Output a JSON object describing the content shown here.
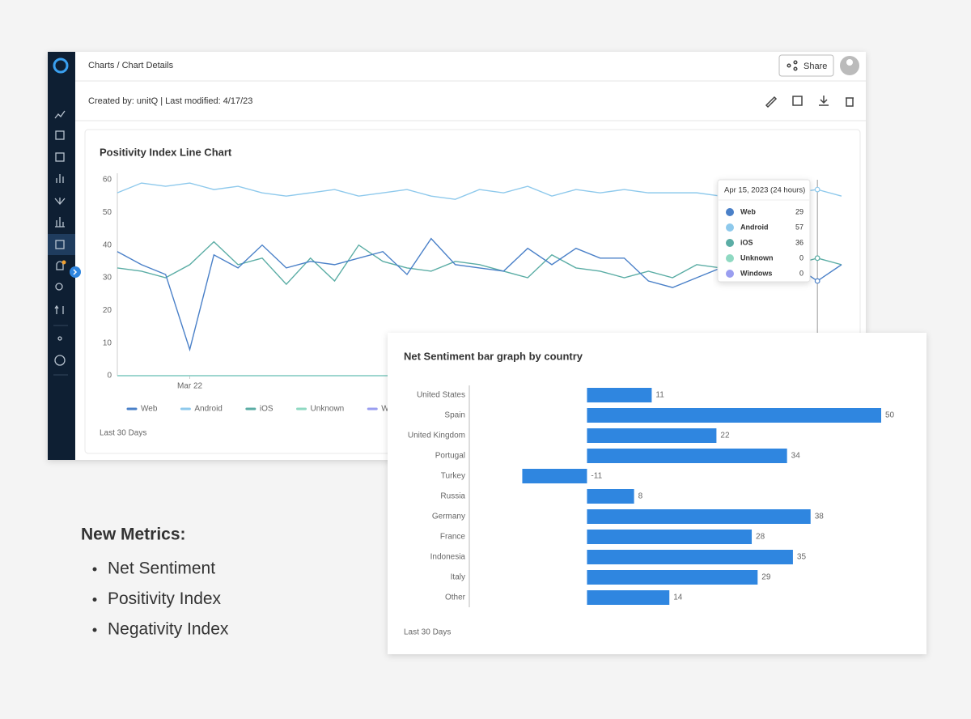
{
  "breadcrumb": "Charts / Chart Details",
  "share": "Share",
  "meta": "Created by: unitQ | Last modified: 4/17/23",
  "chart_data": [
    {
      "type": "line",
      "title": "Positivity Index Line Chart",
      "categories": [
        null,
        null,
        null,
        "Mar 22",
        null,
        null,
        null,
        null,
        null,
        null,
        null,
        null,
        null,
        null,
        null,
        null,
        null,
        null,
        null,
        null,
        null,
        null,
        null,
        null,
        null,
        null,
        null,
        null,
        null,
        null,
        null
      ],
      "series": [
        {
          "name": "Web",
          "color": "#4a80c8",
          "values": [
            38,
            34,
            31,
            8,
            37,
            33,
            40,
            33,
            35,
            34,
            36,
            38,
            31,
            42,
            34,
            33,
            32,
            39,
            34,
            39,
            36,
            36,
            29,
            27,
            30,
            33,
            30,
            33,
            34,
            29,
            34
          ]
        },
        {
          "name": "Android",
          "color": "#8ec9ec",
          "values": [
            56,
            59,
            58,
            59,
            57,
            58,
            56,
            55,
            56,
            57,
            55,
            56,
            57,
            55,
            54,
            57,
            56,
            58,
            55,
            57,
            56,
            57,
            56,
            56,
            56,
            55,
            56,
            55,
            56,
            57,
            55
          ]
        },
        {
          "name": "iOS",
          "color": "#5bada5",
          "values": [
            33,
            32,
            30,
            34,
            41,
            34,
            36,
            28,
            36,
            29,
            40,
            35,
            33,
            32,
            35,
            34,
            32,
            30,
            37,
            33,
            32,
            30,
            32,
            30,
            34,
            33,
            32,
            33,
            34,
            36,
            34
          ]
        },
        {
          "name": "Unknown",
          "color": "#8fd9c2",
          "values": [
            0,
            0,
            0,
            0,
            0,
            0,
            0,
            0,
            0,
            0,
            0,
            0,
            0,
            0,
            0,
            0,
            0,
            0,
            0,
            0,
            0,
            0,
            0,
            0,
            0,
            0,
            0,
            0,
            0,
            0,
            0
          ]
        },
        {
          "name": "Windows",
          "color": "#9a9ef0",
          "values": [
            0,
            0,
            0,
            0,
            0,
            0,
            0,
            0,
            0,
            0,
            0,
            0,
            0,
            0,
            0,
            0,
            0,
            0,
            0,
            0,
            0,
            0,
            0,
            0,
            0,
            0,
            0,
            0,
            0,
            0,
            0
          ]
        }
      ],
      "ylim": [
        0,
        60
      ],
      "yticks": [
        0,
        10,
        20,
        30,
        40,
        50,
        60
      ],
      "grid": false,
      "legend": "bottom",
      "tooltip": {
        "title": "Apr 15, 2023 (24 hours)"
      },
      "footnote": "Last 30 Days"
    },
    {
      "type": "bar",
      "orientation": "horizontal",
      "title": "Net Sentiment bar graph by country",
      "categories": [
        "United States",
        "Spain",
        "United Kingdom",
        "Portugal",
        "Turkey",
        "Russia",
        "Germany",
        "France",
        "Indonesia",
        "Italy",
        "Other"
      ],
      "values": [
        11,
        50,
        22,
        34,
        -11,
        8,
        38,
        28,
        35,
        29,
        14
      ],
      "color": "#2f86e0",
      "xlim": [
        -20,
        50
      ],
      "footnote": "Last 30 Days"
    }
  ],
  "metrics": {
    "title": "New Metrics:",
    "items": [
      "Net Sentiment",
      "Positivity Index",
      "Negativity Index"
    ]
  }
}
